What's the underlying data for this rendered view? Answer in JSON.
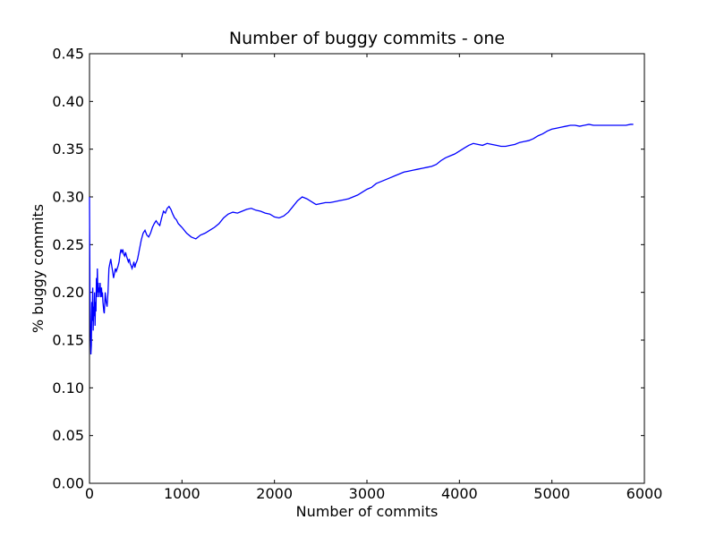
{
  "chart_data": {
    "type": "line",
    "title": "Number of buggy commits - one",
    "xlabel": "Number of commits",
    "ylabel": "% buggy commits",
    "xlim": [
      0,
      6000
    ],
    "ylim": [
      0,
      0.45
    ],
    "xticks": [
      0,
      1000,
      2000,
      3000,
      4000,
      5000,
      6000
    ],
    "xtick_labels": [
      "0",
      "1000",
      "2000",
      "3000",
      "4000",
      "5000",
      "6000"
    ],
    "yticks": [
      0,
      0.05,
      0.1,
      0.15,
      0.2,
      0.25,
      0.3,
      0.35,
      0.4,
      0.45
    ],
    "ytick_labels": [
      "0.00",
      "0.05",
      "0.10",
      "0.15",
      "0.20",
      "0.25",
      "0.30",
      "0.35",
      "0.40",
      "0.45"
    ],
    "grid": false,
    "line_color": "#0000ff",
    "series": [
      {
        "x": [
          0,
          5,
          10,
          15,
          20,
          25,
          30,
          35,
          40,
          45,
          50,
          55,
          60,
          65,
          70,
          75,
          80,
          85,
          90,
          95,
          100,
          105,
          110,
          115,
          120,
          125,
          130,
          135,
          140,
          145,
          150,
          155,
          160,
          170,
          180,
          190,
          200,
          210,
          220,
          230,
          240,
          250,
          260,
          270,
          280,
          290,
          300,
          310,
          320,
          330,
          340,
          350,
          360,
          370,
          380,
          390,
          400,
          410,
          420,
          430,
          440,
          450,
          460,
          470,
          480,
          490,
          500,
          510,
          520,
          530,
          540,
          560,
          580,
          600,
          620,
          640,
          660,
          680,
          700,
          720,
          740,
          760,
          780,
          800,
          820,
          840,
          860,
          880,
          900,
          920,
          940,
          960,
          980,
          1000,
          1050,
          1100,
          1150,
          1200,
          1250,
          1300,
          1350,
          1400,
          1450,
          1500,
          1550,
          1600,
          1650,
          1700,
          1750,
          1800,
          1850,
          1900,
          1950,
          2000,
          2050,
          2100,
          2150,
          2200,
          2250,
          2300,
          2350,
          2400,
          2450,
          2500,
          2550,
          2600,
          2650,
          2700,
          2750,
          2800,
          2850,
          2900,
          2950,
          3000,
          3050,
          3100,
          3150,
          3200,
          3250,
          3300,
          3350,
          3400,
          3450,
          3500,
          3550,
          3600,
          3650,
          3700,
          3750,
          3800,
          3850,
          3900,
          3950,
          4000,
          4050,
          4100,
          4150,
          4200,
          4250,
          4300,
          4350,
          4400,
          4450,
          4500,
          4550,
          4600,
          4650,
          4700,
          4750,
          4800,
          4850,
          4900,
          4950,
          5000,
          5050,
          5100,
          5150,
          5200,
          5250,
          5300,
          5350,
          5400,
          5450,
          5500,
          5550,
          5600,
          5650,
          5700,
          5750,
          5800,
          5850,
          5880
        ],
        "y": [
          0.3,
          0.2,
          0.16,
          0.135,
          0.145,
          0.19,
          0.17,
          0.205,
          0.16,
          0.185,
          0.175,
          0.2,
          0.165,
          0.19,
          0.18,
          0.215,
          0.195,
          0.225,
          0.2,
          0.21,
          0.195,
          0.205,
          0.2,
          0.21,
          0.195,
          0.2,
          0.205,
          0.195,
          0.2,
          0.19,
          0.185,
          0.18,
          0.178,
          0.2,
          0.19,
          0.185,
          0.2,
          0.225,
          0.23,
          0.235,
          0.228,
          0.222,
          0.215,
          0.22,
          0.225,
          0.222,
          0.225,
          0.228,
          0.232,
          0.24,
          0.245,
          0.242,
          0.245,
          0.24,
          0.238,
          0.242,
          0.238,
          0.235,
          0.232,
          0.235,
          0.23,
          0.228,
          0.225,
          0.228,
          0.232,
          0.226,
          0.23,
          0.232,
          0.235,
          0.24,
          0.245,
          0.255,
          0.262,
          0.265,
          0.26,
          0.258,
          0.262,
          0.268,
          0.272,
          0.275,
          0.272,
          0.27,
          0.278,
          0.285,
          0.283,
          0.288,
          0.29,
          0.287,
          0.282,
          0.278,
          0.276,
          0.272,
          0.27,
          0.268,
          0.262,
          0.258,
          0.256,
          0.26,
          0.262,
          0.265,
          0.268,
          0.272,
          0.278,
          0.282,
          0.284,
          0.283,
          0.285,
          0.287,
          0.288,
          0.286,
          0.285,
          0.283,
          0.282,
          0.279,
          0.278,
          0.28,
          0.284,
          0.29,
          0.296,
          0.3,
          0.298,
          0.295,
          0.292,
          0.293,
          0.294,
          0.294,
          0.295,
          0.296,
          0.297,
          0.298,
          0.3,
          0.302,
          0.305,
          0.308,
          0.31,
          0.314,
          0.316,
          0.318,
          0.32,
          0.322,
          0.324,
          0.326,
          0.327,
          0.328,
          0.329,
          0.33,
          0.331,
          0.332,
          0.334,
          0.338,
          0.341,
          0.343,
          0.345,
          0.348,
          0.351,
          0.354,
          0.356,
          0.355,
          0.354,
          0.356,
          0.355,
          0.354,
          0.353,
          0.353,
          0.354,
          0.355,
          0.357,
          0.358,
          0.359,
          0.361,
          0.364,
          0.366,
          0.369,
          0.371,
          0.372,
          0.373,
          0.374,
          0.375,
          0.375,
          0.374,
          0.375,
          0.376,
          0.375,
          0.375,
          0.375,
          0.375,
          0.375,
          0.375,
          0.375,
          0.375,
          0.376,
          0.376
        ]
      }
    ]
  }
}
